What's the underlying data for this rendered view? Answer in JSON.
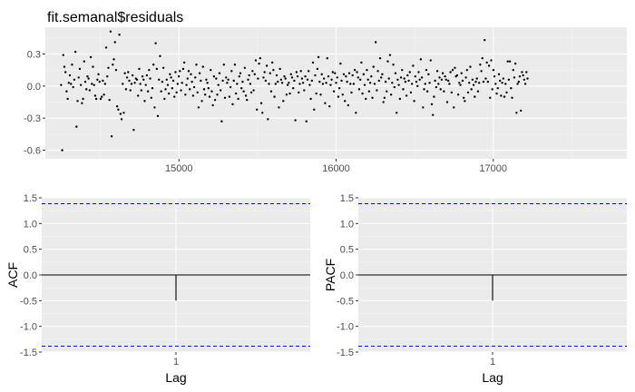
{
  "chart_data": [
    {
      "type": "line",
      "title": "fit.semanal$residuals",
      "xlabel": "",
      "ylabel": "",
      "xlim": [
        14150,
        17850
      ],
      "ylim": [
        -0.68,
        0.55
      ],
      "x_ticks": [
        15000,
        16000,
        17000
      ],
      "x_tick_labels": [
        "15000",
        "16000",
        "17000"
      ],
      "y_ticks": [
        -0.6,
        -0.3,
        0.0,
        0.3
      ],
      "y_tick_labels": [
        "-0.6",
        "-0.3",
        "0.0",
        "0.3"
      ],
      "grid": true,
      "x_start": 14250,
      "x_step": 7,
      "series": [
        {
          "values": [
            0.01,
            -0.6,
            0.29,
            0.18,
            0.13,
            -0.05,
            -0.12,
            0.03,
            0.1,
            0.02,
            0.2,
            -0.01,
            0.06,
            0.32,
            -0.38,
            -0.14,
            0.08,
            0.16,
            0.01,
            -0.16,
            -0.12,
            0.23,
            0.04,
            -0.03,
            0.09,
            0.07,
            -0.04,
            0.27,
            0.02,
            0.18,
            0.01,
            -0.09,
            -0.12,
            0.06,
            0.11,
            0.04,
            -0.12,
            -0.1,
            0.05,
            -0.08,
            0.02,
            0.36,
            0.09,
            0.17,
            -0.13,
            0.51,
            -0.47,
            0.2,
            0.25,
            0.41,
            0.15,
            -0.19,
            -0.22,
            0.48,
            -0.26,
            -0.31,
            0.02,
            -0.25,
            0.12,
            -0.03,
            0.08,
            0.13,
            0.05,
            -0.04,
            0.02,
            0.1,
            -0.41,
            0.03,
            0.07,
            0.06,
            -0.09,
            0.16,
            0.02,
            -0.04,
            0.09,
            0.06,
            -0.14,
            0.01,
            0.1,
            -0.05,
            0.15,
            0.07,
            -0.11,
            -0.02,
            0.2,
            -0.2,
            0.4,
            0.16,
            -0.28,
            0.06,
            0.28,
            -0.05,
            0.04,
            0.17,
            -0.12,
            -0.03,
            0.06,
            0.01,
            -0.07,
            0.11,
            0.08,
            -0.02,
            0.05,
            -0.1,
            0.13,
            -0.06,
            0.02,
            0.09,
            0.14,
            -0.04,
            0.03,
            0.16,
            0.22,
            -0.08,
            0.01,
            0.07,
            0.14,
            -0.03,
            0.11,
            0.04,
            -0.09,
            -0.01,
            0.08,
            0.2,
            -0.06,
            -0.2,
            0.12,
            0.05,
            -0.14,
            0.18,
            -0.03,
            -0.08,
            0.06,
            0.03,
            -0.02,
            -0.1,
            0.15,
            -0.05,
            -0.18,
            0.09,
            -0.13,
            0.07,
            -0.08,
            0.01,
            0.12,
            -0.04,
            -0.33,
            0.05,
            0.2,
            -0.11,
            0.08,
            0.03,
            0.06,
            -0.1,
            -0.01,
            0.14,
            -0.17,
            0.05,
            0.2,
            -0.07,
            0.02,
            -0.12,
            0.09,
            0.12,
            -0.02,
            0.04,
            -0.05,
            0.17,
            -0.09,
            -0.13,
            0.06,
            0.1,
            0.02,
            -0.06,
            0.14,
            -0.04,
            0.11,
            0.24,
            -0.22,
            0.07,
            0.21,
            0.26,
            -0.16,
            -0.25,
            0.08,
            0.13,
            0.05,
            0.19,
            -0.31,
            0.02,
            0.12,
            -0.05,
            0.22,
            0.15,
            -0.1,
            0.02,
            0.1,
            0.04,
            -0.2,
            0.16,
            0.06,
            0.03,
            -0.14,
            0.09,
            0.07,
            -0.08,
            0.01,
            0.03,
            -0.07,
            0.11,
            0.08,
            -0.02,
            0.05,
            -0.32,
            0.13,
            0.09,
            -0.06,
            0.02,
            0.14,
            0.07,
            0.03,
            -0.04,
            0.09,
            -0.33,
            0.06,
            0.14,
            0.01,
            -0.12,
            0.05,
            0.22,
            -0.22,
            0.1,
            -0.07,
            0.16,
            0.27,
            0.04,
            -0.08,
            0.11,
            0.02,
            0.07,
            -0.16,
            0.03,
            0.26,
            0.09,
            -0.19,
            0.01,
            0.06,
            0.13,
            -0.05,
            0.12,
            0.03,
            0.08,
            -0.1,
            -0.02,
            0.21,
            0.05,
            -0.08,
            0.11,
            -0.14,
            0.09,
            0.04,
            -0.18,
            0.12,
            0.02,
            -0.06,
            0.1,
            0.02,
            0.15,
            -0.25,
            0.13,
            0.08,
            -0.03,
            0.06,
            0.22,
            -0.07,
            0.11,
            0.01,
            -0.12,
            0.15,
            0.06,
            -0.05,
            0.03,
            0.09,
            -0.11,
            0.18,
            0.02,
            0.41,
            -0.04,
            0.14,
            0.05,
            0.26,
            0.08,
            0.11,
            -0.15,
            -0.11,
            0.04,
            -0.05,
            0.23,
            0.07,
            0.29,
            -0.08,
            0.03,
            0.2,
            -0.01,
            0.12,
            -0.25,
            0.06,
            0.01,
            -0.12,
            0.08,
            0.15,
            -0.03,
            0.07,
            0.04,
            -0.09,
            0.1,
            0.05,
            0.13,
            -0.06,
            0.02,
            0.19,
            -0.14,
            0.09,
            0.04,
            0.0,
            0.13,
            0.06,
            0.25,
            0.08,
            -0.2,
            -0.03,
            0.02,
            0.15,
            -0.05,
            0.11,
            0.03,
            0.24,
            -0.17,
            -0.27,
            -0.1,
            0.05,
            -0.01,
            0.14,
            0.02,
            0.08,
            -0.03,
            0.06,
            0.12,
            -0.05,
            0.09,
            0.06,
            -0.15,
            0.05,
            0.02,
            0.13,
            -0.06,
            0.15,
            -0.2,
            0.17,
            0.09,
            0.1,
            -0.08,
            0.03,
            0.01,
            0.12,
            0.05,
            -0.11,
            -0.14,
            0.08,
            0.15,
            -0.06,
            0.03,
            0.18,
            -0.03,
            0.06,
            0.01,
            -0.1,
            0.04,
            0.07,
            -0.05,
            0.03,
            0.2,
            0.14,
            0.26,
            0.04,
            0.43,
            0.07,
            0.22,
            0.04,
            0.19,
            -0.11,
            0.24,
            -0.03,
            0.15,
            0.09,
            0.02,
            -0.07,
            -0.02,
            0.11,
            0.05,
            -0.09,
            0.03,
            0.07,
            -0.1,
            0.02,
            -0.06,
            0.23,
            0.06,
            0.23,
            -0.02,
            -0.11,
            0.15,
            0.08,
            0.21,
            -0.25,
            0.02,
            0.04,
            0.09,
            -0.23,
            0.13,
            0.1,
            0.06,
            0.02,
            0.13,
            0.07
          ]
        }
      ]
    },
    {
      "type": "bar",
      "title": "",
      "xlabel": "Lag",
      "ylabel": "ACF",
      "categories": [
        "1"
      ],
      "values": [
        -0.5
      ],
      "xlim": [
        0.4,
        1.6
      ],
      "ylim": [
        -1.5,
        1.5
      ],
      "y_ticks": [
        -1.5,
        -1.0,
        -0.5,
        0.0,
        0.5,
        1.0,
        1.5
      ],
      "y_tick_labels": [
        "-1.5",
        "-1.0",
        "-0.5",
        "0.0",
        "0.5",
        "1.0",
        "1.5"
      ],
      "confidence_bounds": [
        -1.386,
        1.386
      ],
      "grid": true
    },
    {
      "type": "bar",
      "title": "",
      "xlabel": "Lag",
      "ylabel": "PACF",
      "categories": [
        "1"
      ],
      "values": [
        -0.5
      ],
      "xlim": [
        0.4,
        1.6
      ],
      "ylim": [
        -1.5,
        1.5
      ],
      "y_ticks": [
        -1.5,
        -1.0,
        -0.5,
        0.0,
        0.5,
        1.0,
        1.5
      ],
      "y_tick_labels": [
        "-1.5",
        "-1.0",
        "-0.5",
        "0.0",
        "0.5",
        "1.0",
        "1.5"
      ],
      "confidence_bounds": [
        -1.386,
        1.386
      ],
      "grid": true
    }
  ],
  "colors": {
    "panel": "#ebebeb",
    "grid_major": "#ffffff",
    "grid_minor": "#f5f5f5",
    "points": "#000000",
    "confidence": "#0000ff",
    "tick_text": "#4d4d4d",
    "tick_mark": "#333333"
  }
}
